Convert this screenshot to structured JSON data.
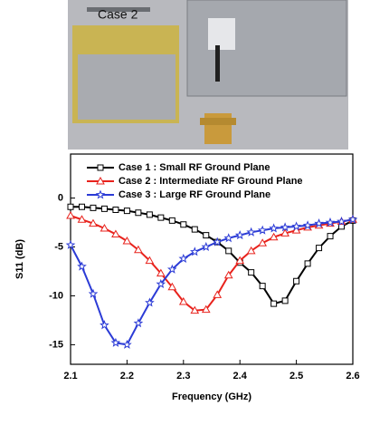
{
  "photo": {
    "label": "Case 2"
  },
  "chart_data": {
    "type": "line",
    "xlabel": "Frequency (GHz)",
    "ylabel": "S11 (dB)",
    "x": [
      2.1,
      2.12,
      2.14,
      2.16,
      2.18,
      2.2,
      2.22,
      2.24,
      2.26,
      2.28,
      2.3,
      2.32,
      2.34,
      2.36,
      2.38,
      2.4,
      2.42,
      2.44,
      2.46,
      2.48,
      2.5,
      2.52,
      2.54,
      2.56,
      2.58,
      2.6
    ],
    "series": [
      {
        "name": "Case 1 : Small RF Ground Plane",
        "color": "#000000",
        "marker": "square",
        "values": [
          -0.9,
          -0.9,
          -1.0,
          -1.1,
          -1.2,
          -1.3,
          -1.5,
          -1.7,
          -2.0,
          -2.3,
          -2.7,
          -3.2,
          -3.8,
          -4.5,
          -5.4,
          -6.6,
          -7.6,
          -9.0,
          -10.8,
          -10.5,
          -8.5,
          -6.7,
          -5.1,
          -3.9,
          -2.9,
          -2.3
        ]
      },
      {
        "name": "Case 2 : Intermediate RF Ground Plane",
        "color": "#e8221c",
        "marker": "triangle",
        "values": [
          -1.8,
          -2.2,
          -2.6,
          -3.1,
          -3.7,
          -4.4,
          -5.3,
          -6.4,
          -7.7,
          -9.1,
          -10.6,
          -11.5,
          -11.4,
          -9.9,
          -7.9,
          -6.4,
          -5.4,
          -4.6,
          -4.0,
          -3.6,
          -3.3,
          -3.0,
          -2.8,
          -2.6,
          -2.4,
          -2.2
        ]
      },
      {
        "name": "Case 3 : Large RF Ground Plane",
        "color": "#2b3bd6",
        "marker": "star",
        "values": [
          -4.8,
          -7.0,
          -9.8,
          -13.0,
          -14.8,
          -15.0,
          -12.8,
          -10.7,
          -8.8,
          -7.3,
          -6.2,
          -5.5,
          -5.0,
          -4.5,
          -4.1,
          -3.8,
          -3.5,
          -3.3,
          -3.1,
          -3.0,
          -2.9,
          -2.8,
          -2.6,
          -2.5,
          -2.4,
          -2.2
        ]
      }
    ],
    "xlim": [
      2.1,
      2.6
    ],
    "xticks": [
      2.1,
      2.2,
      2.3,
      2.4,
      2.5,
      2.6
    ],
    "ylim": [
      -17,
      4.5
    ],
    "yticks": [
      0,
      -5,
      -10,
      -15
    ],
    "legend": "upper-left",
    "grid": false
  }
}
